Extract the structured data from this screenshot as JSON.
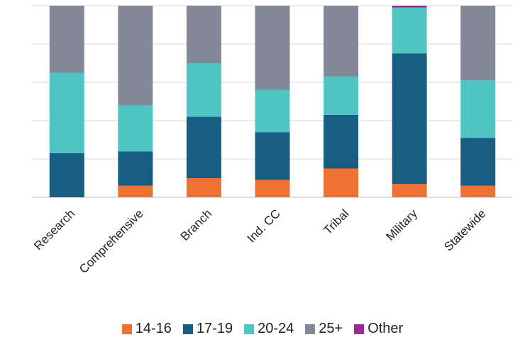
{
  "chart_data": {
    "type": "bar",
    "stacked": true,
    "normalized": true,
    "title": "",
    "xlabel": "",
    "ylabel": "",
    "ylim": [
      0,
      100
    ],
    "grid": true,
    "legend_position": "bottom",
    "categories": [
      "Research",
      "Comprehensive",
      "Branch",
      "Ind. CC",
      "Tribal",
      "Military",
      "Statewide"
    ],
    "series": [
      {
        "name": "14-16",
        "color": "#ED7234",
        "values": [
          0,
          6,
          10,
          9,
          15,
          7,
          6
        ]
      },
      {
        "name": "17-19",
        "color": "#175E82",
        "values": [
          23,
          18,
          32,
          25,
          28,
          68,
          25
        ]
      },
      {
        "name": "20-24",
        "color": "#4EC4C3",
        "values": [
          42,
          24,
          28,
          22,
          20,
          24,
          30
        ]
      },
      {
        "name": "25+",
        "color": "#838899",
        "values": [
          35,
          52,
          30,
          44,
          37,
          0,
          39
        ]
      },
      {
        "name": "Other",
        "color": "#9B2A8E",
        "values": [
          0,
          0,
          0,
          0,
          0,
          1,
          0
        ]
      }
    ]
  }
}
